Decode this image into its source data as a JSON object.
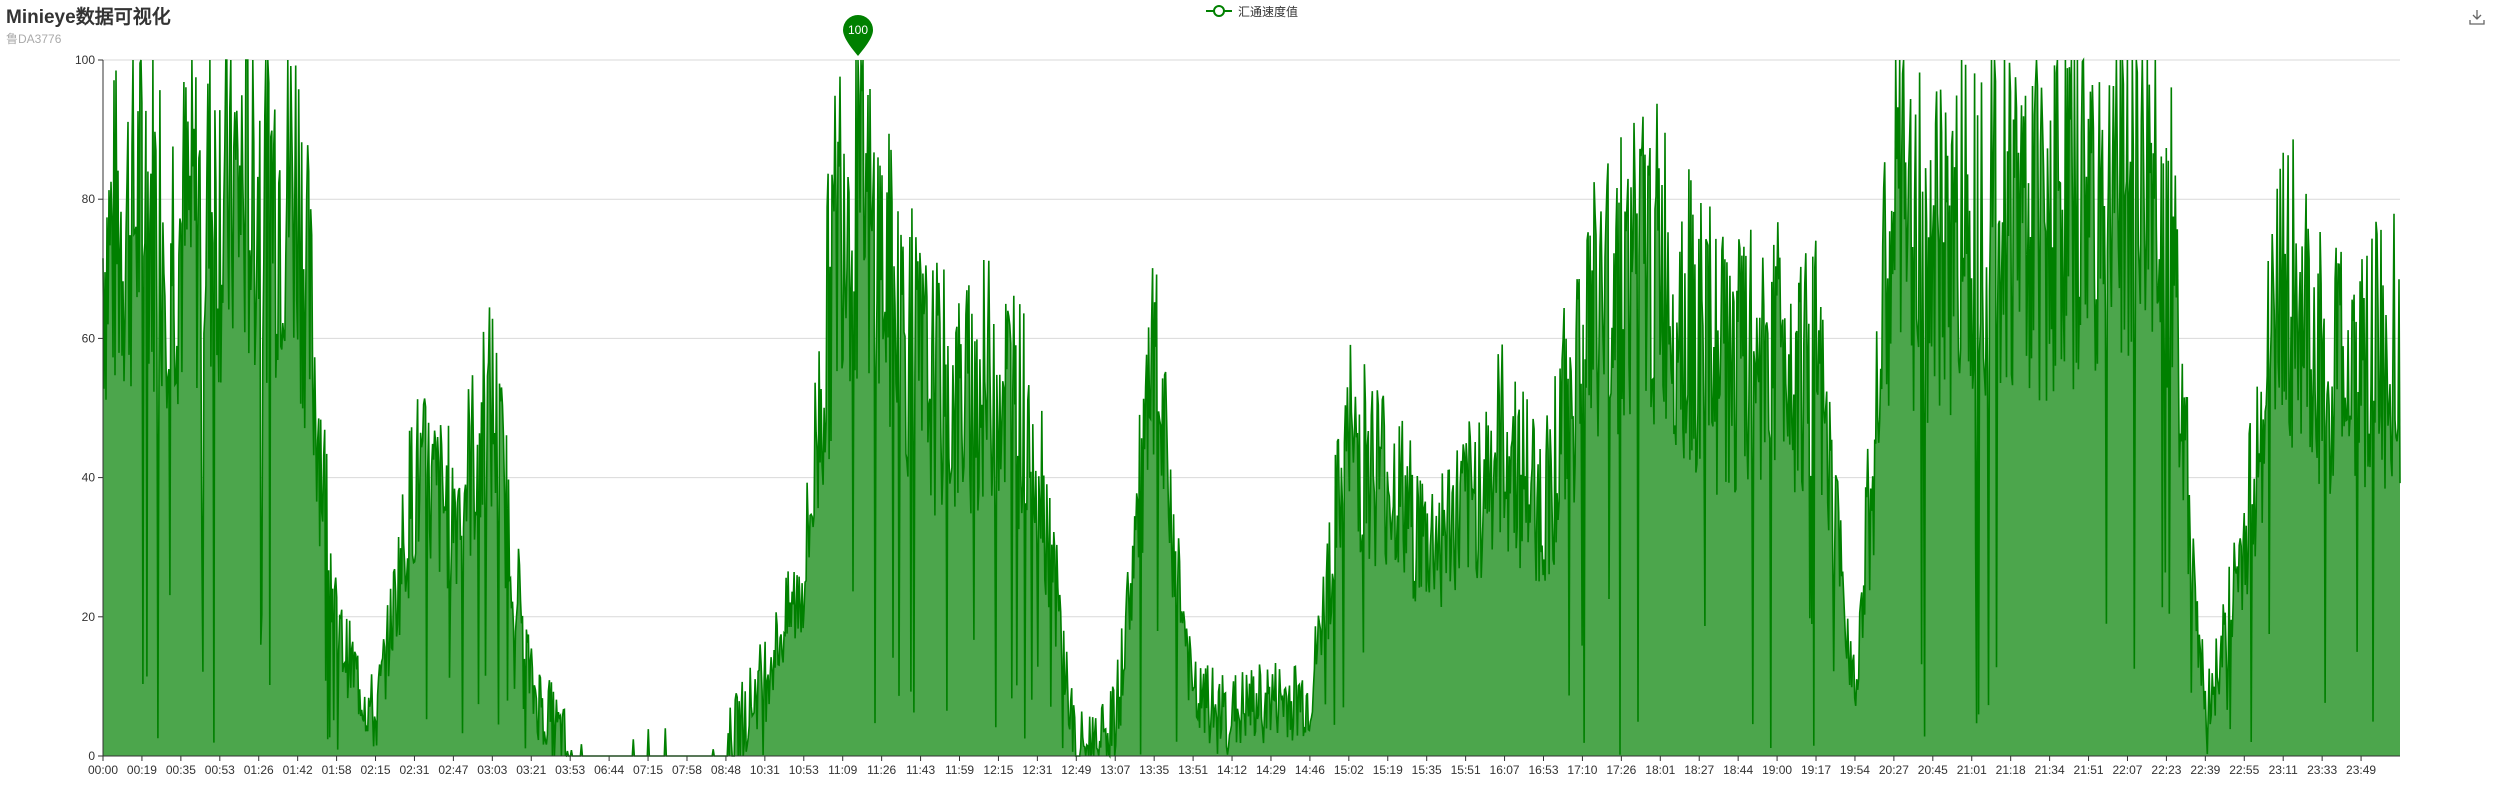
{
  "title": "Minieye数据可视化",
  "subtitle": "鲁DA3776",
  "toolbox": {
    "save_icon": "download-icon"
  },
  "colors": {
    "series": "#008000",
    "area": "#4CA64C",
    "grid": "#d9d9d9",
    "axis": "#333333"
  },
  "chart_data": {
    "type": "area",
    "legend": "top-center",
    "grid": true,
    "series": [
      {
        "name": "汇通速度值"
      }
    ],
    "ylim": [
      0,
      100
    ],
    "y_ticks": [
      "0",
      "20",
      "40",
      "60",
      "80",
      "100"
    ],
    "x_ticks": [
      "00:00",
      "00:19",
      "00:35",
      "00:53",
      "01:26",
      "01:42",
      "01:58",
      "02:15",
      "02:31",
      "02:47",
      "03:03",
      "03:21",
      "03:53",
      "06:44",
      "07:15",
      "07:58",
      "08:48",
      "10:31",
      "10:53",
      "11:09",
      "11:26",
      "11:43",
      "11:59",
      "12:15",
      "12:31",
      "12:49",
      "13:07",
      "13:35",
      "13:51",
      "14:12",
      "14:29",
      "14:46",
      "15:02",
      "15:19",
      "15:35",
      "15:51",
      "16:07",
      "16:53",
      "17:10",
      "17:26",
      "18:01",
      "18:27",
      "18:44",
      "19:00",
      "19:17",
      "19:54",
      "20:27",
      "20:45",
      "21:01",
      "21:18",
      "21:34",
      "21:51",
      "22:07",
      "22:23",
      "22:39",
      "22:55",
      "23:11",
      "23:33",
      "23:49"
    ],
    "x_range": [
      "00:00",
      "23:59"
    ],
    "profile_at_x_ticks": [
      72,
      80,
      75,
      80,
      82,
      83,
      18,
      5,
      40,
      35,
      50,
      10,
      0,
      0,
      0,
      0,
      0,
      12,
      25,
      85,
      70,
      55,
      50,
      55,
      45,
      0,
      5,
      55,
      8,
      6,
      8,
      8,
      45,
      40,
      30,
      35,
      45,
      35,
      60,
      70,
      70,
      60,
      55,
      60,
      55,
      10,
      80,
      70,
      80,
      78,
      78,
      80,
      82,
      83,
      5,
      30,
      70,
      55,
      58
    ],
    "max_marker": {
      "value": 100,
      "label": "100",
      "x": "11:15"
    }
  }
}
